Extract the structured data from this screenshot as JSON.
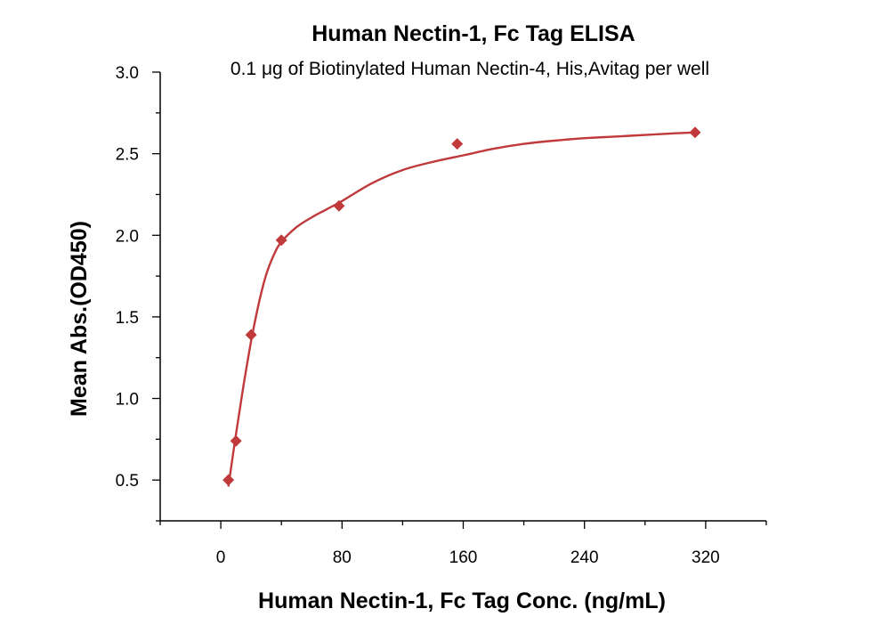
{
  "chart_data": {
    "type": "scatter",
    "title": "Human Nectin-1, Fc Tag ELISA",
    "subtitle": "0.1 μg of Biotinylated Human Nectin-4, His,Avitag per well",
    "xlabel": "Human Nectin-1, Fc Tag Conc. (ng/mL)",
    "ylabel": "Mean Abs.(OD450)",
    "xlim": [
      -40,
      360
    ],
    "ylim": [
      0.25,
      3.0
    ],
    "x_ticks": [
      0,
      80,
      160,
      240,
      320
    ],
    "x_tick_labels": [
      "0",
      "80",
      "160",
      "240",
      "320"
    ],
    "y_ticks": [
      0.5,
      1.0,
      1.5,
      2.0,
      2.5,
      3.0
    ],
    "y_tick_labels": [
      "0.5",
      "1.0",
      "1.5",
      "2.0",
      "2.5",
      "3.0"
    ],
    "grid": false,
    "legend": "none",
    "marker": "diamond",
    "color": "#c0393b",
    "series": [
      {
        "points": [
          {
            "x": 5,
            "y": 0.5
          },
          {
            "x": 10,
            "y": 0.74
          },
          {
            "x": 20,
            "y": 1.39
          },
          {
            "x": 40,
            "y": 1.97
          },
          {
            "x": 78,
            "y": 2.18
          },
          {
            "x": 156,
            "y": 2.56
          },
          {
            "x": 313,
            "y": 2.63
          }
        ],
        "fit_curve": [
          {
            "x": 5,
            "y": 0.46
          },
          {
            "x": 10,
            "y": 0.78
          },
          {
            "x": 15,
            "y": 1.08
          },
          {
            "x": 20,
            "y": 1.35
          },
          {
            "x": 25,
            "y": 1.58
          },
          {
            "x": 30,
            "y": 1.76
          },
          {
            "x": 35,
            "y": 1.88
          },
          {
            "x": 40,
            "y": 1.96
          },
          {
            "x": 50,
            "y": 2.05
          },
          {
            "x": 60,
            "y": 2.11
          },
          {
            "x": 70,
            "y": 2.16
          },
          {
            "x": 80,
            "y": 2.21
          },
          {
            "x": 100,
            "y": 2.32
          },
          {
            "x": 120,
            "y": 2.4
          },
          {
            "x": 140,
            "y": 2.45
          },
          {
            "x": 160,
            "y": 2.49
          },
          {
            "x": 180,
            "y": 2.53
          },
          {
            "x": 200,
            "y": 2.56
          },
          {
            "x": 220,
            "y": 2.58
          },
          {
            "x": 240,
            "y": 2.595
          },
          {
            "x": 260,
            "y": 2.605
          },
          {
            "x": 280,
            "y": 2.615
          },
          {
            "x": 300,
            "y": 2.625
          },
          {
            "x": 313,
            "y": 2.63
          }
        ]
      }
    ]
  }
}
